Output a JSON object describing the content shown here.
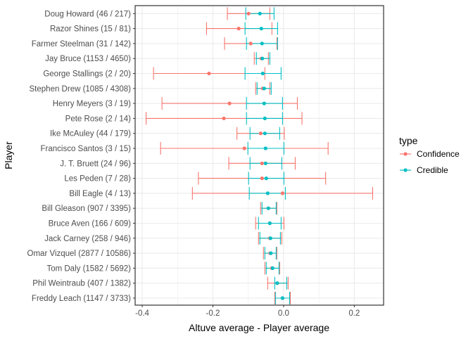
{
  "chart_data": {
    "type": "errorbar",
    "title": "",
    "xlabel": "Altuve average - Player average",
    "ylabel": "Player",
    "xlim": [
      -0.42,
      0.283
    ],
    "x_ticks": [
      -0.4,
      -0.2,
      0.0,
      0.2
    ],
    "x_tick_labels": [
      "-0.4",
      "-0.2",
      "0.0",
      "0.2"
    ],
    "grid": true,
    "legend": {
      "title": "type",
      "placement": "right",
      "entries": [
        "Confidence",
        "Credible"
      ]
    },
    "colors": {
      "Confidence": "#F8766D",
      "Credible": "#00BFC4"
    },
    "players": [
      "Doug Howard (46 / 217)",
      "Razor Shines (15 / 81)",
      "Farmer Steelman (31 / 142)",
      "Jay Bruce (1153 / 4650)",
      "George Stallings (2 / 20)",
      "Stephen Drew (1085 / 4308)",
      "Henry Meyers (3 / 19)",
      "Pete Rose (2 / 14)",
      "Ike McAuley (44 / 179)",
      "Francisco Santos (3 / 15)",
      "J. T. Bruett (24 / 96)",
      "Les Peden (7 / 28)",
      "Bill Eagle (4 / 13)",
      "Bill Gleason (907 / 3395)",
      "Bruce Aven (166 / 609)",
      "Jack Carney (258 / 946)",
      "Omar Vizquel (2877 / 10586)",
      "Tom Daly (1582 / 5692)",
      "Phil Weintraub (407 / 1382)",
      "Freddy Leach (1147 / 3733)"
    ],
    "series": [
      {
        "name": "Confidence",
        "estimate": [
          -0.099,
          -0.127,
          -0.093,
          -0.063,
          -0.211,
          -0.059,
          -0.153,
          -0.169,
          -0.065,
          -0.111,
          -0.061,
          -0.061,
          -0.003,
          -0.043,
          -0.039,
          -0.039,
          -0.038,
          -0.033,
          -0.018,
          -0.003
        ],
        "lower": [
          -0.159,
          -0.218,
          -0.167,
          -0.083,
          -0.368,
          -0.079,
          -0.344,
          -0.389,
          -0.132,
          -0.348,
          -0.155,
          -0.241,
          -0.258,
          -0.065,
          -0.079,
          -0.071,
          -0.057,
          -0.053,
          -0.045,
          -0.025
        ],
        "upper": [
          -0.039,
          -0.033,
          -0.019,
          -0.043,
          -0.053,
          -0.039,
          0.039,
          0.052,
          0.002,
          0.126,
          0.033,
          0.119,
          0.252,
          -0.019,
          0.001,
          -0.005,
          -0.019,
          -0.011,
          0.013,
          0.019
        ]
      },
      {
        "name": "Credible",
        "estimate": [
          -0.067,
          -0.063,
          -0.061,
          -0.06,
          -0.059,
          -0.055,
          -0.055,
          -0.053,
          -0.053,
          -0.051,
          -0.051,
          -0.049,
          -0.045,
          -0.043,
          -0.039,
          -0.037,
          -0.036,
          -0.031,
          -0.018,
          -0.003
        ],
        "lower": [
          -0.107,
          -0.109,
          -0.105,
          -0.077,
          -0.109,
          -0.075,
          -0.105,
          -0.105,
          -0.095,
          -0.101,
          -0.095,
          -0.099,
          -0.097,
          -0.061,
          -0.071,
          -0.067,
          -0.053,
          -0.049,
          -0.025,
          -0.023
        ],
        "upper": [
          -0.027,
          -0.017,
          -0.017,
          -0.039,
          -0.007,
          -0.035,
          -0.003,
          -0.003,
          -0.011,
          0.001,
          -0.005,
          0.001,
          0.005,
          -0.021,
          -0.007,
          -0.009,
          -0.021,
          -0.013,
          0.009,
          0.017
        ]
      }
    ]
  }
}
